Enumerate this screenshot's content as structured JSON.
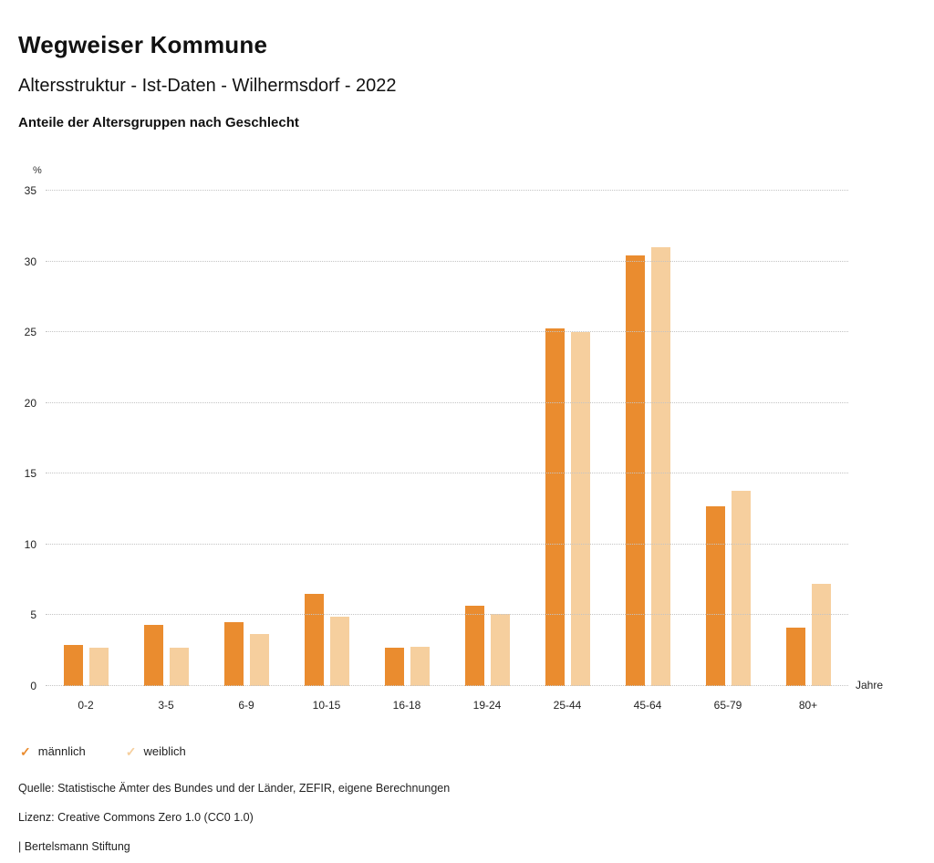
{
  "header": {
    "title": "Wegweiser Kommune",
    "subtitle": "Altersstruktur - Ist-Daten - Wilhermsdorf - 2022",
    "section_title": "Anteile der Altersgruppen nach Geschlecht"
  },
  "chart_data": {
    "type": "bar",
    "title": "Anteile der Altersgruppen nach Geschlecht",
    "unit": "%",
    "xlabel": "Jahre",
    "ylabel": "%",
    "ylim": [
      0,
      35
    ],
    "yticks": [
      0,
      5,
      10,
      15,
      20,
      25,
      30,
      35
    ],
    "grid": true,
    "legend_position": "bottom-left",
    "legend_marker": "✓",
    "categories": [
      "0-2",
      "3-5",
      "6-9",
      "10-15",
      "16-18",
      "19-24",
      "25-44",
      "45-64",
      "65-79",
      "80+"
    ],
    "series": [
      {
        "name": "männlich",
        "color": "#EA8C2F",
        "values": [
          2.9,
          4.3,
          4.5,
          6.5,
          2.7,
          5.7,
          25.3,
          30.4,
          12.7,
          4.1
        ]
      },
      {
        "name": "weiblich",
        "color": "#F6CF9E",
        "values": [
          2.7,
          2.7,
          3.7,
          4.9,
          2.8,
          5.1,
          25.0,
          31.0,
          13.8,
          7.2
        ]
      }
    ]
  },
  "footer": {
    "source": "Quelle: Statistische Ämter des Bundes und der Länder, ZEFIR, eigene Berechnungen",
    "license": "Lizenz: Creative Commons Zero 1.0 (CC0 1.0)",
    "attribution": "| Bertelsmann Stiftung"
  }
}
